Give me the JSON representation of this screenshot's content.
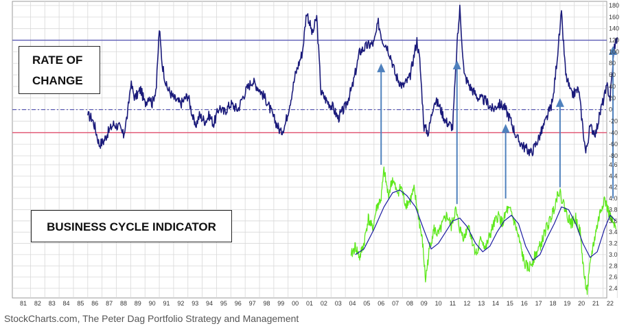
{
  "chart_data": [
    {
      "type": "line",
      "title": "RATE OF CHANGE",
      "x_ticks": [
        "81",
        "82",
        "83",
        "84",
        "85",
        "86",
        "87",
        "88",
        "89",
        "90",
        "91",
        "92",
        "93",
        "94",
        "95",
        "96",
        "97",
        "98",
        "99",
        "00",
        "01",
        "02",
        "03",
        "04",
        "05",
        "06",
        "07",
        "08",
        "09",
        "10",
        "11",
        "12",
        "13",
        "14",
        "15",
        "16",
        "17",
        "18",
        "19",
        "20",
        "21",
        "22"
      ],
      "y_ticks": [
        "180",
        "160",
        "140",
        "120",
        "100",
        "80",
        "60",
        "40",
        "20",
        "0",
        "-20",
        "-40",
        "-60",
        "-80"
      ],
      "ylim": [
        -80,
        180
      ],
      "reference_lines": [
        120,
        0,
        -40
      ],
      "series": [
        {
          "color": "#1a1a7a",
          "points": [
            [
              1985.5,
              -10
            ],
            [
              1985.8,
              -15
            ],
            [
              1986.0,
              -30
            ],
            [
              1986.3,
              -60
            ],
            [
              1986.6,
              -55
            ],
            [
              1986.9,
              -40
            ],
            [
              1987.3,
              -25
            ],
            [
              1987.7,
              -30
            ],
            [
              1988.0,
              -45
            ],
            [
              1988.3,
              -5
            ],
            [
              1988.5,
              45
            ],
            [
              1988.8,
              20
            ],
            [
              1989.2,
              35
            ],
            [
              1989.5,
              10
            ],
            [
              1989.8,
              25
            ],
            [
              1990.0,
              10
            ],
            [
              1990.3,
              40
            ],
            [
              1990.5,
              140
            ],
            [
              1990.7,
              80
            ],
            [
              1991.0,
              40
            ],
            [
              1991.5,
              20
            ],
            [
              1992.0,
              10
            ],
            [
              1992.5,
              25
            ],
            [
              1993.0,
              -30
            ],
            [
              1993.3,
              -10
            ],
            [
              1993.7,
              -20
            ],
            [
              1994.0,
              -10
            ],
            [
              1994.3,
              -25
            ],
            [
              1994.7,
              5
            ],
            [
              1995.0,
              -5
            ],
            [
              1995.5,
              10
            ],
            [
              1996.0,
              0
            ],
            [
              1996.3,
              20
            ],
            [
              1996.6,
              35
            ],
            [
              1997.0,
              50
            ],
            [
              1997.5,
              35
            ],
            [
              1998.0,
              15
            ],
            [
              1998.5,
              -15
            ],
            [
              1999.0,
              -40
            ],
            [
              1999.3,
              -25
            ],
            [
              1999.7,
              20
            ],
            [
              2000.0,
              60
            ],
            [
              2000.5,
              100
            ],
            [
              2000.8,
              170
            ],
            [
              2001.2,
              130
            ],
            [
              2001.5,
              160
            ],
            [
              2001.8,
              30
            ],
            [
              2002.2,
              15
            ],
            [
              2002.6,
              5
            ],
            [
              2003.0,
              -15
            ],
            [
              2003.5,
              5
            ],
            [
              2004.0,
              40
            ],
            [
              2004.5,
              100
            ],
            [
              2005.0,
              110
            ],
            [
              2005.5,
              115
            ],
            [
              2005.8,
              150
            ],
            [
              2006.1,
              120
            ],
            [
              2006.4,
              110
            ],
            [
              2006.7,
              90
            ],
            [
              2007.0,
              60
            ],
            [
              2007.5,
              40
            ],
            [
              2008.0,
              55
            ],
            [
              2008.5,
              120
            ],
            [
              2008.7,
              85
            ],
            [
              2009.0,
              -30
            ],
            [
              2009.3,
              -40
            ],
            [
              2009.7,
              15
            ],
            [
              2010.0,
              10
            ],
            [
              2010.5,
              -20
            ],
            [
              2011.0,
              -30
            ],
            [
              2011.3,
              110
            ],
            [
              2011.5,
              175
            ],
            [
              2011.8,
              60
            ],
            [
              2012.2,
              40
            ],
            [
              2012.8,
              20
            ],
            [
              2013.3,
              15
            ],
            [
              2013.8,
              0
            ],
            [
              2014.2,
              10
            ],
            [
              2014.6,
              5
            ],
            [
              2015.0,
              -15
            ],
            [
              2015.5,
              -50
            ],
            [
              2016.0,
              -65
            ],
            [
              2016.5,
              -75
            ],
            [
              2017.0,
              -50
            ],
            [
              2017.5,
              -20
            ],
            [
              2018.0,
              15
            ],
            [
              2018.3,
              90
            ],
            [
              2018.6,
              165
            ],
            [
              2018.9,
              60
            ],
            [
              2019.3,
              25
            ],
            [
              2019.8,
              35
            ],
            [
              2020.0,
              -10
            ],
            [
              2020.3,
              -75
            ],
            [
              2020.6,
              -30
            ],
            [
              2021.0,
              -40
            ],
            [
              2021.4,
              5
            ],
            [
              2021.8,
              40
            ],
            [
              2022.0,
              20
            ],
            [
              2022.3,
              110
            ],
            [
              2022.5,
              125
            ]
          ]
        }
      ]
    },
    {
      "type": "line",
      "title": "BUSINESS CYCLE INDICATOR",
      "x_ticks": [
        "81",
        "82",
        "83",
        "84",
        "85",
        "86",
        "87",
        "88",
        "89",
        "90",
        "91",
        "92",
        "93",
        "94",
        "95",
        "96",
        "97",
        "98",
        "99",
        "00",
        "01",
        "02",
        "03",
        "04",
        "05",
        "06",
        "07",
        "08",
        "09",
        "10",
        "11",
        "12",
        "13",
        "14",
        "15",
        "16",
        "17",
        "18",
        "19",
        "20",
        "21",
        "22"
      ],
      "y_ticks": [
        "4.6",
        "4.4",
        "4.2",
        "4.0",
        "3.8",
        "3.6",
        "3.4",
        "3.2",
        "3.0",
        "2.8",
        "2.6",
        "2.4"
      ],
      "ylim": [
        2.4,
        4.6
      ],
      "series": [
        {
          "color": "#5ee81c",
          "points": [
            [
              2003.9,
              2.98
            ],
            [
              2004.2,
              3.15
            ],
            [
              2004.5,
              2.95
            ],
            [
              2004.8,
              3.2
            ],
            [
              2005.1,
              3.65
            ],
            [
              2005.4,
              3.45
            ],
            [
              2005.7,
              3.85
            ],
            [
              2006.0,
              4.0
            ],
            [
              2006.2,
              4.5
            ],
            [
              2006.5,
              4.05
            ],
            [
              2006.8,
              4.35
            ],
            [
              2007.1,
              4.1
            ],
            [
              2007.4,
              4.2
            ],
            [
              2007.7,
              3.9
            ],
            [
              2008.0,
              3.95
            ],
            [
              2008.3,
              4.15
            ],
            [
              2008.6,
              3.7
            ],
            [
              2008.9,
              3.2
            ],
            [
              2009.1,
              2.55
            ],
            [
              2009.4,
              3.15
            ],
            [
              2009.7,
              3.45
            ],
            [
              2010.0,
              3.35
            ],
            [
              2010.3,
              3.55
            ],
            [
              2010.6,
              3.7
            ],
            [
              2010.9,
              3.5
            ],
            [
              2011.2,
              3.8
            ],
            [
              2011.5,
              3.45
            ],
            [
              2011.8,
              3.3
            ],
            [
              2012.1,
              3.55
            ],
            [
              2012.4,
              3.2
            ],
            [
              2012.7,
              3.0
            ],
            [
              2013.0,
              3.3
            ],
            [
              2013.3,
              3.1
            ],
            [
              2013.6,
              3.35
            ],
            [
              2013.9,
              3.55
            ],
            [
              2014.2,
              3.7
            ],
            [
              2014.5,
              3.55
            ],
            [
              2014.8,
              3.8
            ],
            [
              2015.1,
              3.75
            ],
            [
              2015.4,
              3.5
            ],
            [
              2015.7,
              3.2
            ],
            [
              2016.0,
              2.85
            ],
            [
              2016.3,
              2.75
            ],
            [
              2016.6,
              2.9
            ],
            [
              2016.9,
              3.05
            ],
            [
              2017.2,
              3.2
            ],
            [
              2017.5,
              3.45
            ],
            [
              2017.8,
              3.6
            ],
            [
              2018.1,
              3.85
            ],
            [
              2018.4,
              4.15
            ],
            [
              2018.7,
              3.95
            ],
            [
              2019.0,
              3.7
            ],
            [
              2019.3,
              3.55
            ],
            [
              2019.6,
              3.65
            ],
            [
              2019.9,
              3.4
            ],
            [
              2020.2,
              2.6
            ],
            [
              2020.4,
              2.35
            ],
            [
              2020.7,
              3.0
            ],
            [
              2021.0,
              3.4
            ],
            [
              2021.3,
              3.75
            ],
            [
              2021.6,
              4.0
            ],
            [
              2021.9,
              3.75
            ],
            [
              2022.2,
              3.55
            ],
            [
              2022.4,
              3.45
            ]
          ]
        },
        {
          "color": "#1a1aa0",
          "points": [
            [
              2004.2,
              3.0
            ],
            [
              2004.8,
              3.1
            ],
            [
              2005.5,
              3.45
            ],
            [
              2006.2,
              3.85
            ],
            [
              2006.8,
              4.1
            ],
            [
              2007.3,
              4.15
            ],
            [
              2007.8,
              4.05
            ],
            [
              2008.4,
              3.85
            ],
            [
              2008.9,
              3.5
            ],
            [
              2009.5,
              3.1
            ],
            [
              2010.0,
              3.2
            ],
            [
              2010.5,
              3.4
            ],
            [
              2011.0,
              3.6
            ],
            [
              2011.5,
              3.65
            ],
            [
              2012.0,
              3.5
            ],
            [
              2012.6,
              3.2
            ],
            [
              2013.1,
              3.05
            ],
            [
              2013.6,
              3.15
            ],
            [
              2014.1,
              3.4
            ],
            [
              2014.6,
              3.6
            ],
            [
              2015.1,
              3.7
            ],
            [
              2015.6,
              3.55
            ],
            [
              2016.1,
              3.15
            ],
            [
              2016.6,
              2.9
            ],
            [
              2017.1,
              3.0
            ],
            [
              2017.6,
              3.3
            ],
            [
              2018.1,
              3.55
            ],
            [
              2018.6,
              3.85
            ],
            [
              2019.1,
              3.8
            ],
            [
              2019.6,
              3.55
            ],
            [
              2020.1,
              3.2
            ],
            [
              2020.6,
              2.95
            ],
            [
              2021.1,
              3.05
            ],
            [
              2021.6,
              3.45
            ],
            [
              2022.0,
              3.7
            ],
            [
              2022.4,
              3.6
            ]
          ]
        }
      ]
    }
  ],
  "annotations": {
    "roc_label_line1": "RATE OF",
    "roc_label_line2": "CHANGE",
    "bci_label": "BUSINESS CYCLE INDICATOR",
    "arrows": [
      {
        "x": 2006.0,
        "from_bci": 4.6,
        "to_roc": 80
      },
      {
        "x": 2011.3,
        "from_bci": 3.9,
        "to_roc": 85
      },
      {
        "x": 2014.7,
        "from_bci": 4.0,
        "to_roc": -25
      },
      {
        "x": 2018.5,
        "from_bci": 4.2,
        "to_roc": 20
      },
      {
        "x": 2022.2,
        "from_bci": 4.0,
        "to_roc": 110
      }
    ],
    "arrow_color": "#4f81bd"
  },
  "source": "StockCharts.com, The Peter Dag Portfolio Strategy and Management",
  "colors": {
    "roc_line": "#1a1a7a",
    "ref_line_120": "#5b5bb5",
    "ref_line_zero": "#5b5bb5",
    "ref_line_minus40": "#e0506e",
    "grid": "#d8d8d8",
    "bci_raw": "#5ee81c",
    "bci_smooth": "#1a1aa0"
  }
}
